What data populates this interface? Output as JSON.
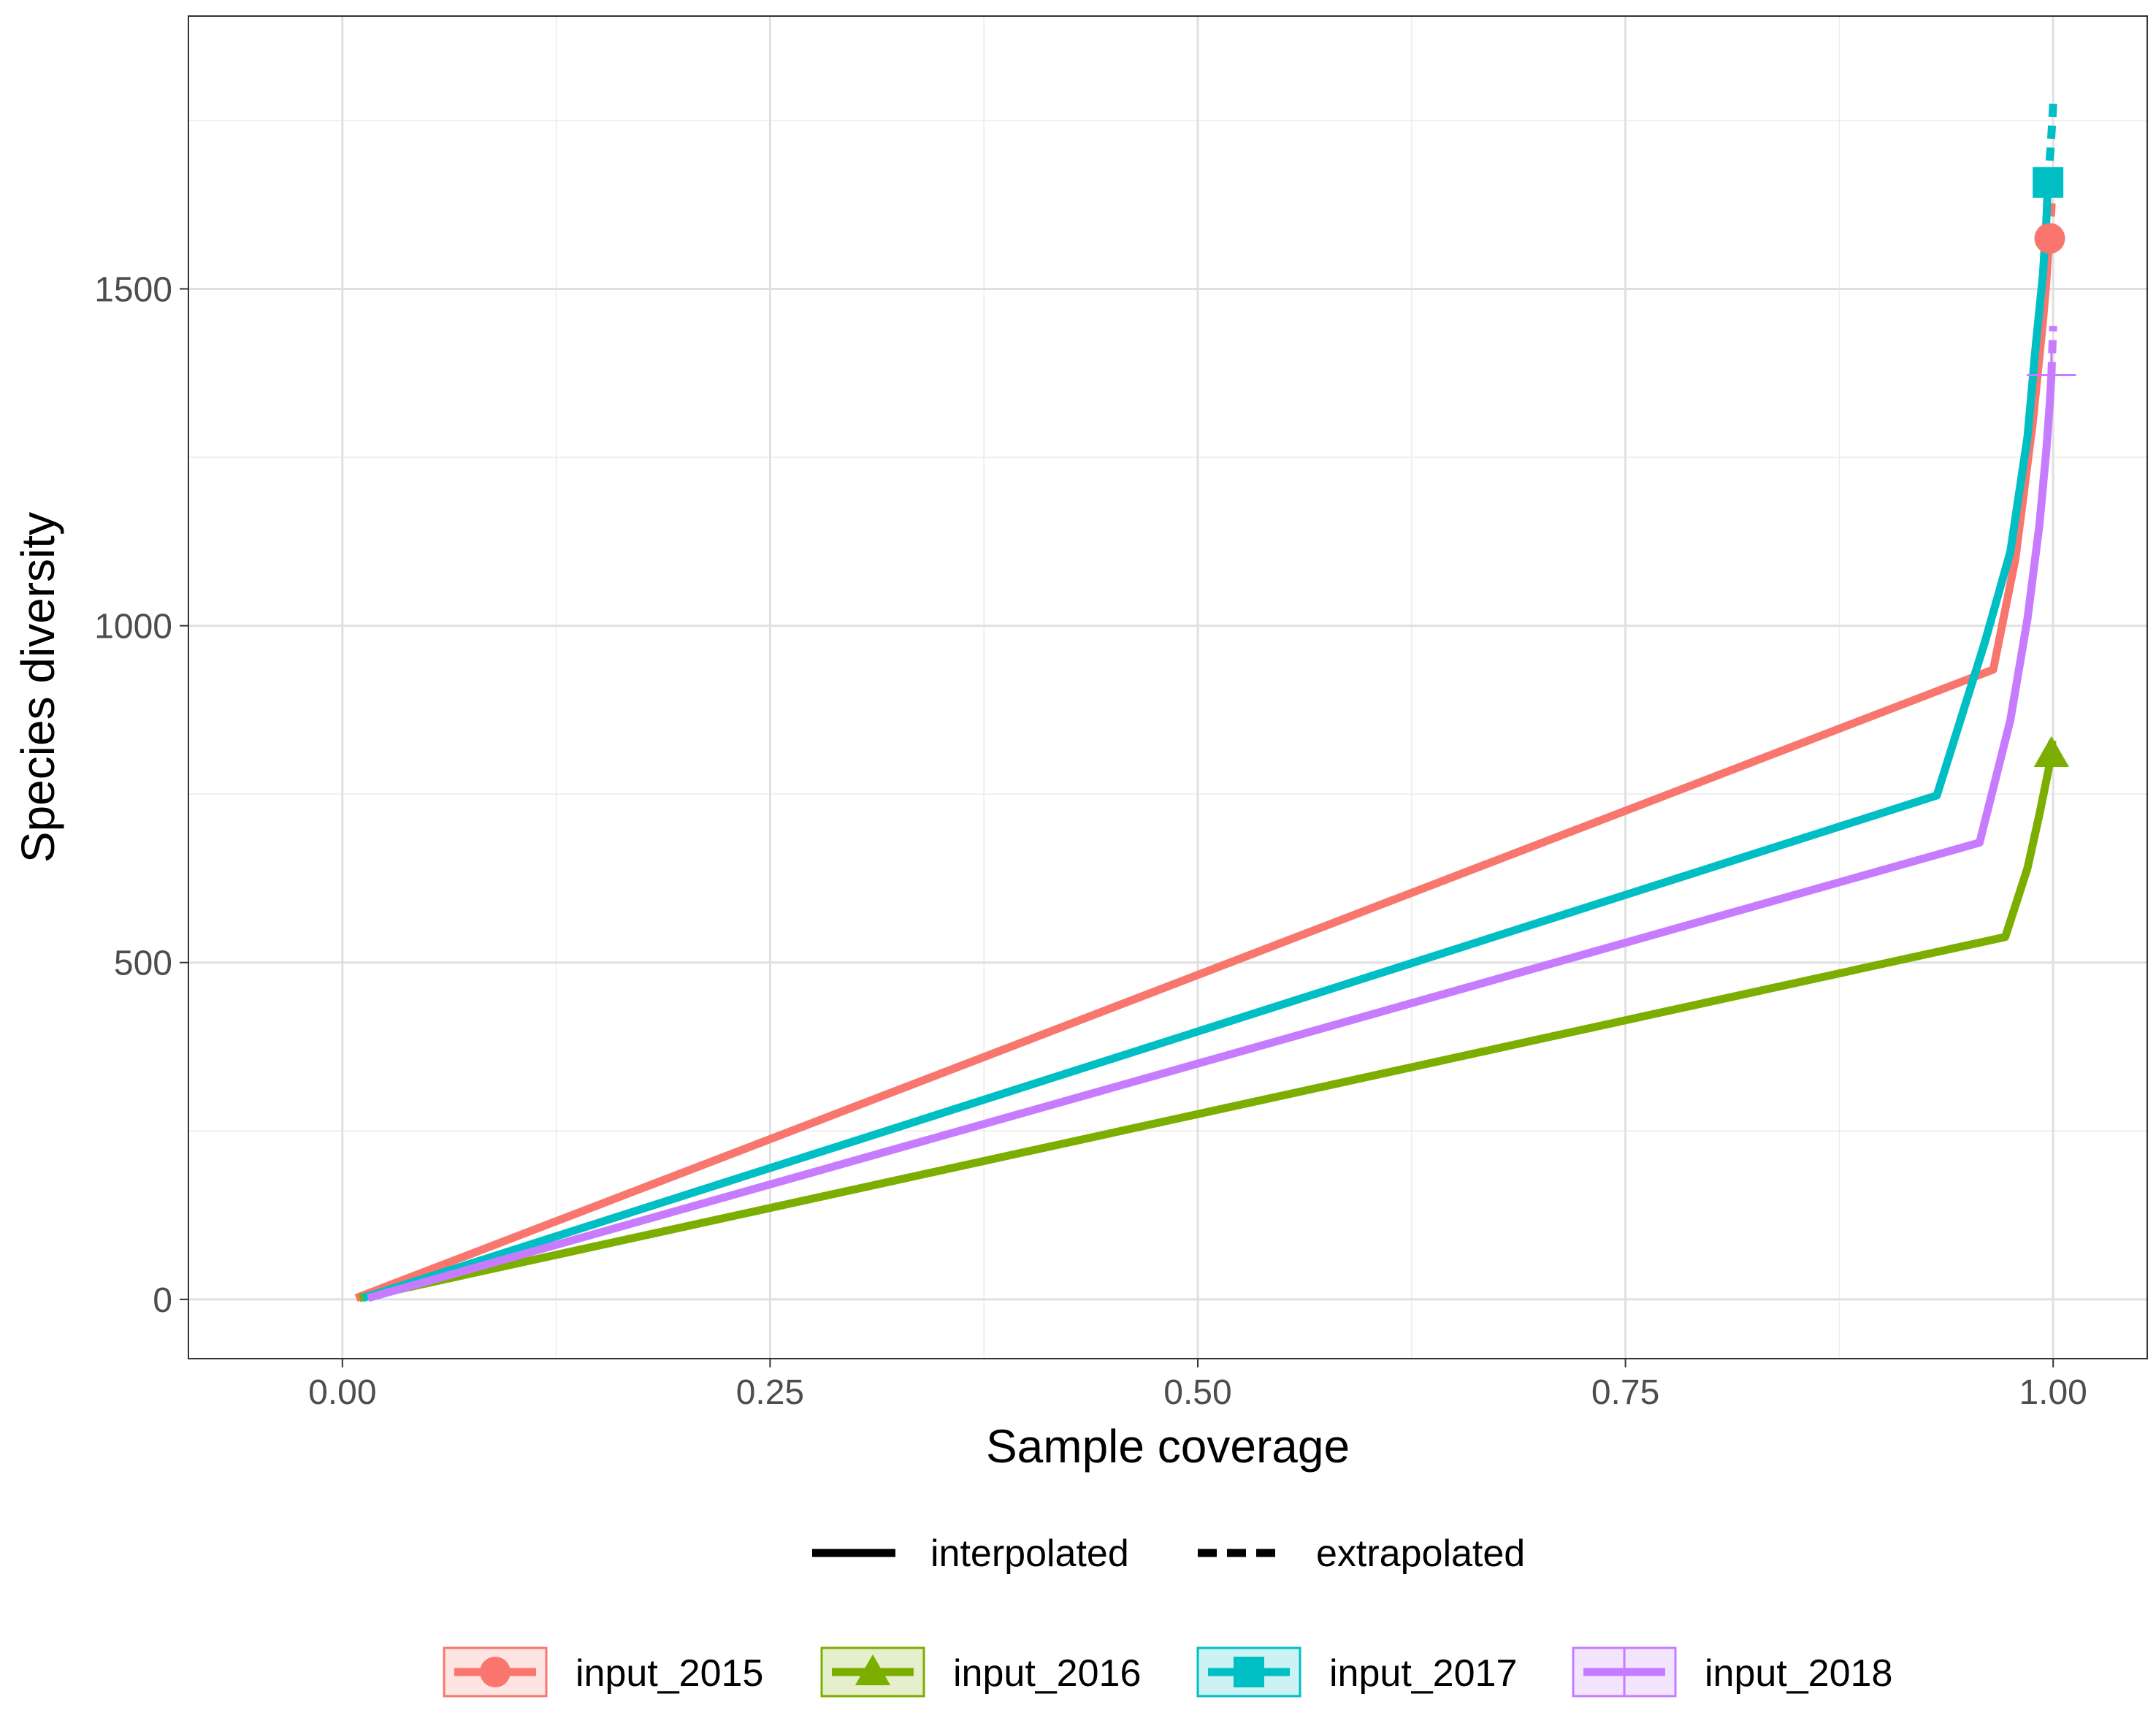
{
  "chart_data": {
    "type": "line",
    "title": "",
    "xlabel": "Sample coverage",
    "ylabel": "Species diversity",
    "xlim": [
      -0.09,
      1.055
    ],
    "ylim": [
      -88,
      1905
    ],
    "x_ticks": [
      0.0,
      0.25,
      0.5,
      0.75,
      1.0
    ],
    "x_tick_labels": [
      "0.00",
      "0.25",
      "0.50",
      "0.75",
      "1.00"
    ],
    "x_minor_ticks": [
      0.125,
      0.375,
      0.625,
      0.875
    ],
    "y_ticks": [
      0,
      500,
      1000,
      1500
    ],
    "y_tick_labels": [
      "0",
      "500",
      "1000",
      "1500"
    ],
    "y_minor_ticks": [
      250,
      750,
      1250,
      1750
    ],
    "grid": true,
    "colors": {
      "input_2015": "#F8766D",
      "input_2016": "#7CAE00",
      "input_2017": "#00BFC4",
      "input_2018": "#C77CFF"
    },
    "line_type_legend": [
      {
        "label": "interpolated",
        "dash": "solid"
      },
      {
        "label": "extrapolated",
        "dash": "dashed"
      }
    ],
    "series_legend_placement": "bottom",
    "series": [
      {
        "name": "input_2015",
        "color": "#F8766D",
        "marker": "circle",
        "observed": {
          "x": 0.998,
          "y": 1575
        },
        "interpolated": {
          "x": [
            0.008,
            0.965,
            0.978,
            0.988,
            0.994,
            0.996,
            0.997,
            0.998
          ],
          "y": [
            2,
            935,
            1100,
            1300,
            1450,
            1510,
            1550,
            1575
          ]
        },
        "extrapolated": {
          "x": [
            0.998,
            0.999,
            0.9995
          ],
          "y": [
            1575,
            1620,
            1650
          ]
        }
      },
      {
        "name": "input_2016",
        "color": "#7CAE00",
        "marker": "triangle",
        "observed": {
          "x": 0.999,
          "y": 810
        },
        "interpolated": {
          "x": [
            0.01,
            0.972,
            0.985,
            0.992,
            0.996,
            0.998,
            0.999
          ],
          "y": [
            2,
            538,
            640,
            720,
            770,
            795,
            810
          ]
        },
        "extrapolated": {
          "x": [
            0.999,
            0.9995
          ],
          "y": [
            810,
            830
          ]
        }
      },
      {
        "name": "input_2017",
        "color": "#00BFC4",
        "marker": "square",
        "observed": {
          "x": 0.997,
          "y": 1658
        },
        "interpolated": {
          "x": [
            0.012,
            0.932,
            0.96,
            0.975,
            0.985,
            0.99,
            0.994,
            0.996,
            0.997
          ],
          "y": [
            2,
            748,
            975,
            1110,
            1280,
            1420,
            1520,
            1600,
            1658
          ]
        },
        "extrapolated": {
          "x": [
            0.997,
            0.9985,
            0.9995,
            1.0
          ],
          "y": [
            1658,
            1710,
            1750,
            1775
          ]
        }
      },
      {
        "name": "input_2018",
        "color": "#C77CFF",
        "marker": "plus",
        "observed": {
          "x": 0.999,
          "y": 1372
        },
        "interpolated": {
          "x": [
            0.015,
            0.957,
            0.975,
            0.985,
            0.992,
            0.996,
            0.998,
            0.999
          ],
          "y": [
            2,
            678,
            860,
            1010,
            1150,
            1260,
            1330,
            1372
          ]
        },
        "extrapolated": {
          "x": [
            0.999,
            0.9995,
            1.0
          ],
          "y": [
            1372,
            1410,
            1445
          ]
        }
      }
    ]
  }
}
